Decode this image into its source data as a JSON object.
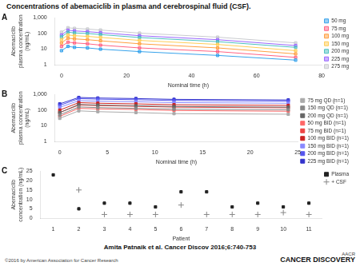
{
  "title": "Concentrations of abemaciclib in plasma and cerebrospinal fluid (CSF).",
  "annotations": [
    "Amita Patnaik et al. Cancer Discov 2016;6:740-753",
    "©2016 by American Association for Cancer Research",
    "CANCER DISCOVERY",
    "AACR"
  ],
  "chart_data": [
    {
      "type": "line",
      "title": "A",
      "x_label": "Nominal time (h)",
      "y_label": "Abemaciclib\nplasma concentration\n(ng/mL)",
      "x": [
        0,
        2,
        4,
        8,
        12,
        24,
        48,
        72
      ],
      "series": [
        {
          "name": "50 mg",
          "values": [
            8,
            15,
            13,
            12,
            10,
            7,
            4,
            2
          ]
        },
        {
          "name": "75 mg",
          "values": [
            15,
            28,
            25,
            22,
            18,
            12,
            7,
            3
          ]
        },
        {
          "name": "100 mg",
          "values": [
            25,
            50,
            45,
            40,
            34,
            22,
            12,
            5
          ]
        },
        {
          "name": "150 mg",
          "values": [
            40,
            80,
            72,
            65,
            56,
            36,
            20,
            8
          ]
        },
        {
          "name": "200 mg",
          "values": [
            60,
            120,
            108,
            100,
            85,
            55,
            30,
            13
          ]
        },
        {
          "name": "225 mg",
          "values": [
            80,
            160,
            145,
            130,
            112,
            72,
            40,
            17
          ]
        },
        {
          "name": "275 mg",
          "values": [
            120,
            230,
            210,
            190,
            165,
            105,
            58,
            25
          ]
        }
      ],
      "xlim": [
        -2,
        80
      ],
      "xticks": [
        0,
        20,
        40,
        60,
        80
      ],
      "ylim": [
        1,
        1000
      ],
      "yticks": [
        1,
        10,
        100,
        {
          "value": 1000,
          "label": "1,000"
        }
      ],
      "log": "y",
      "grid": false,
      "legend": "upper right",
      "marker": "square",
      "line_style": "solid"
    },
    {
      "type": "line",
      "title": "B",
      "x_label": "Nominal time (h)",
      "y_label": "Abemaciclib\nplasma concentration\n(ng/mL)",
      "x": [
        0,
        2,
        4,
        8,
        12,
        24
      ],
      "series": [
        {
          "name": "75 mg QD (n=1)",
          "color": "#aaaaaa",
          "values": [
            30,
            90,
            80,
            70,
            60,
            55
          ]
        },
        {
          "name": "150 mg QD (n=1)",
          "color": "#888888",
          "values": [
            50,
            160,
            145,
            130,
            115,
            105
          ]
        },
        {
          "name": "200 mg QD (n=1)",
          "color": "#666666",
          "values": [
            70,
            230,
            210,
            190,
            170,
            155
          ]
        },
        {
          "name": "50 mg BID (n=1)",
          "color": "#ff6666",
          "values": [
            40,
            130,
            120,
            110,
            95,
            85
          ]
        },
        {
          "name": "75 mg BID (n=1)",
          "color": "#ee4444",
          "values": [
            70,
            210,
            195,
            175,
            155,
            140
          ]
        },
        {
          "name": "100 mg BID (n=1)",
          "color": "#cc2222",
          "values": [
            100,
            300,
            275,
            250,
            220,
            200
          ]
        },
        {
          "name": "150 mg BID (n=1)",
          "color": "#8888ff",
          "values": [
            150,
            400,
            370,
            340,
            300,
            275
          ]
        },
        {
          "name": "200 mg BID (n=1)",
          "color": "#5555ee",
          "values": [
            200,
            540,
            500,
            460,
            410,
            375
          ]
        },
        {
          "name": "225 mg BID (n=1)",
          "color": "#3333cc",
          "values": [
            250,
            640,
            590,
            545,
            485,
            445
          ]
        }
      ],
      "xlim": [
        -0.5,
        25
      ],
      "xticks": [
        0,
        5,
        10,
        15,
        20,
        25
      ],
      "ylim": [
        1,
        1000
      ],
      "yticks": [
        1,
        10,
        100,
        {
          "value": 1000,
          "label": "1,000"
        }
      ],
      "log": "y",
      "grid": false,
      "legend": "lower right",
      "marker": "square",
      "line_style": "solid"
    },
    {
      "type": "scatter",
      "title": "C",
      "x_label": "Patient",
      "y_label": "Abemaciclib\nconcentration (ng/mL)",
      "series": [
        {
          "name": "Plasma",
          "color": "#222222",
          "marker": "square",
          "x": [
            1,
            2,
            3,
            4,
            5,
            6,
            7,
            8,
            9,
            10,
            11
          ],
          "values": [
            23,
            5,
            8,
            8,
            6,
            14,
            14,
            6,
            8,
            6,
            8
          ]
        },
        {
          "name": "+ CSF",
          "color": "#888888",
          "marker": "plus",
          "x": [
            2,
            3,
            4,
            5,
            6,
            7,
            8,
            9,
            10,
            11
          ],
          "values": [
            15,
            2,
            2,
            2,
            7,
            2,
            2,
            2,
            3,
            2
          ]
        }
      ],
      "xlim": [
        0.5,
        11.5
      ],
      "xticks": [
        1,
        2,
        3,
        4,
        5,
        6,
        7,
        8,
        9,
        10,
        11
      ],
      "ylim": [
        0,
        25
      ],
      "yticks": [
        0,
        5,
        10,
        15,
        20,
        25
      ],
      "grid": false,
      "legend": "upper right"
    }
  ]
}
